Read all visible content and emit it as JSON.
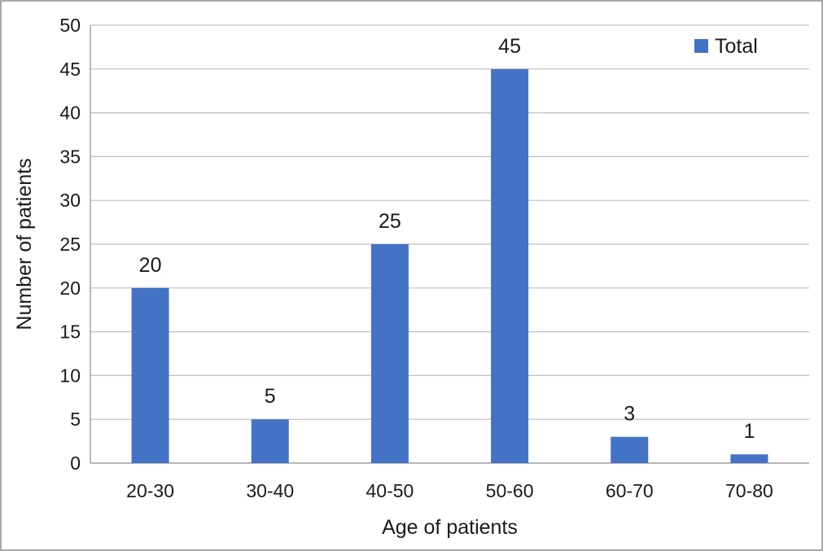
{
  "chart_data": {
    "type": "bar",
    "categories": [
      "20-30",
      "30-40",
      "40-50",
      "50-60",
      "60-70",
      "70-80"
    ],
    "series": [
      {
        "name": "Total",
        "values": [
          20,
          5,
          25,
          45,
          3,
          1
        ],
        "color": "#4472C4"
      }
    ],
    "xlabel": "Age of patients",
    "ylabel": "Number of patients",
    "ylim": [
      0,
      50
    ],
    "yticks": [
      0,
      5,
      10,
      15,
      20,
      25,
      30,
      35,
      40,
      45,
      50
    ],
    "grid": true,
    "legend": "top-right",
    "data_labels": true
  },
  "colors": {
    "bar": "#4472C4",
    "grid": "#bfbfbf",
    "frame": "#8c8c8c"
  }
}
